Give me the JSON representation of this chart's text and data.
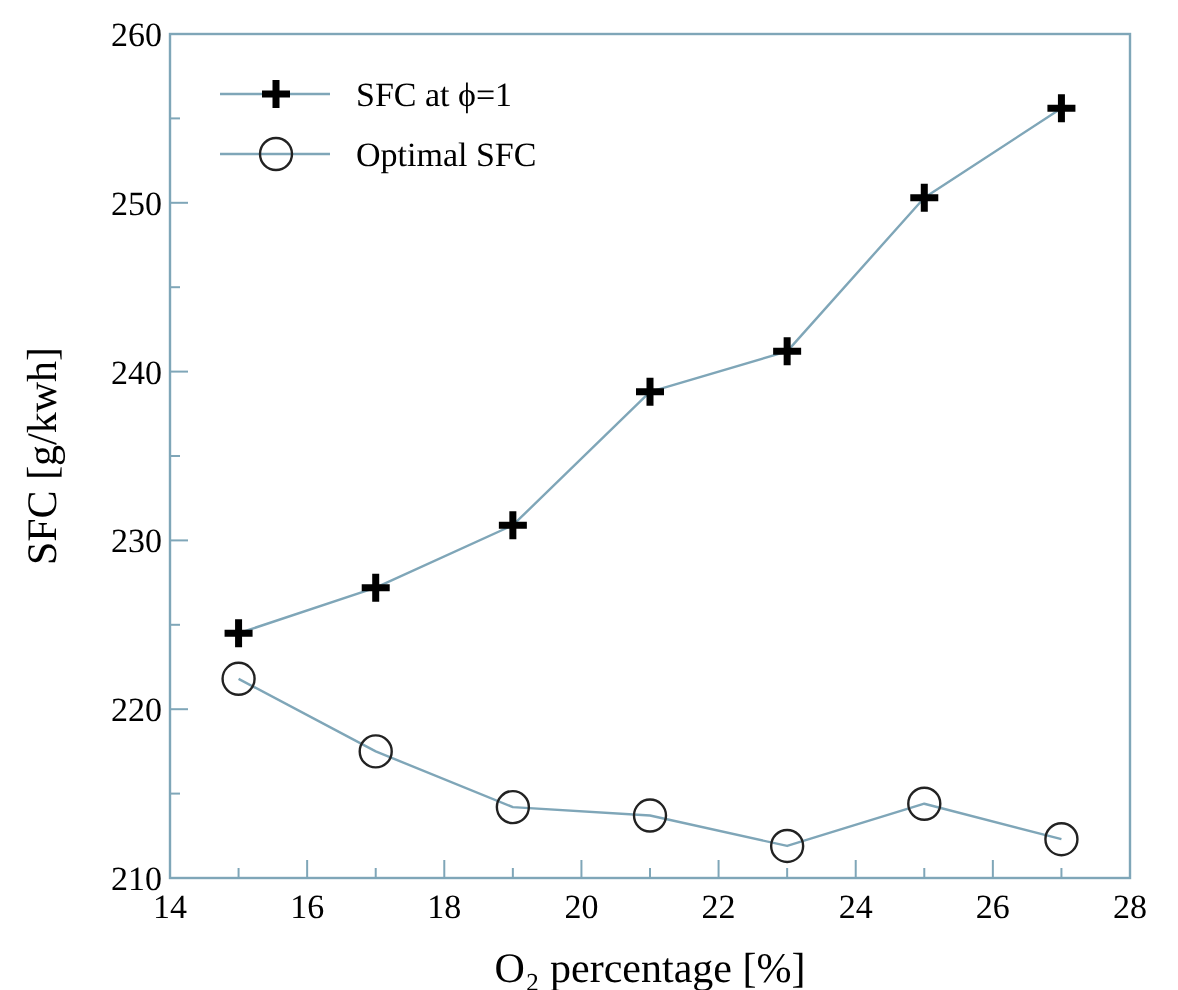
{
  "chart_data": {
    "type": "line",
    "xlabel": "O₂ percentage [%]",
    "ylabel": "SFC [g/kwh]",
    "x": [
      15,
      17,
      19,
      21,
      23,
      25,
      27
    ],
    "series": [
      {
        "name": "SFC at ϕ=1",
        "color": "#7fa6b8",
        "marker": "cross",
        "values": [
          224.5,
          227.2,
          230.9,
          238.8,
          241.2,
          250.3,
          255.6
        ]
      },
      {
        "name": "Optimal SFC",
        "color": "#7fa6b8",
        "marker": "circle",
        "values": [
          221.8,
          217.5,
          214.2,
          213.7,
          211.9,
          214.4,
          212.3
        ]
      }
    ],
    "xlim": [
      14,
      28
    ],
    "xticks": [
      14,
      {
        "value": 15,
        "label": null
      },
      16,
      {
        "value": 17,
        "label": null
      },
      18,
      {
        "value": 19,
        "label": null
      },
      20,
      {
        "value": 21,
        "label": null
      },
      22,
      {
        "value": 23,
        "label": null
      },
      24,
      {
        "value": 25,
        "label": null
      },
      26,
      {
        "value": 27,
        "label": null
      },
      28
    ],
    "ylim": [
      210,
      260
    ],
    "yticks": [
      210,
      {
        "value": 215,
        "label": null
      },
      220,
      {
        "value": 225,
        "label": null
      },
      230,
      {
        "value": 235,
        "label": null
      },
      240,
      {
        "value": 245,
        "label": null
      },
      250,
      {
        "value": 255,
        "label": null
      },
      260
    ],
    "grid": false,
    "legend": "top left",
    "line_style": "solid"
  }
}
